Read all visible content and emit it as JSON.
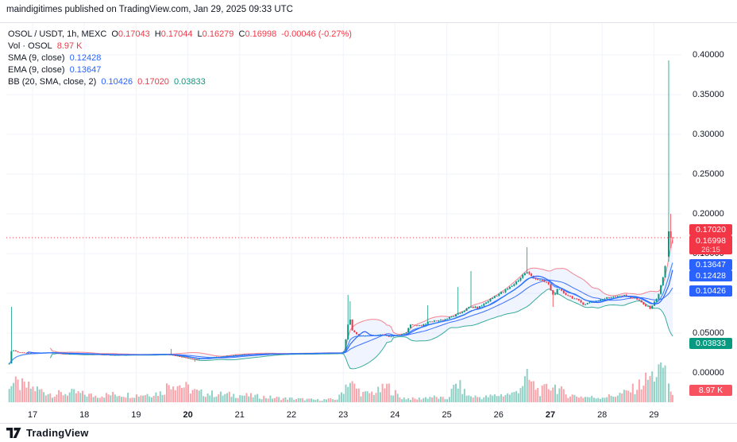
{
  "attribution": "maindigitimes published on TradingView.com, Jan 29, 2025 09:33 UTC",
  "footer": {
    "brand": "TradingView"
  },
  "legend": {
    "symbol": "OSOL / USDT, 1h, MEXC",
    "ohlc": {
      "o_label": "O",
      "o": "0.17043",
      "h_label": "H",
      "h": "0.17044",
      "l_label": "L",
      "l": "0.16279",
      "c_label": "C",
      "c": "0.16998",
      "change": "-0.00046 (-0.27%)"
    },
    "volume_row": {
      "label": "Vol · OSOL",
      "value": "8.97 K"
    },
    "sma_row": {
      "label": "SMA (9, close)",
      "value": "0.12428"
    },
    "ema_row": {
      "label": "EMA (9, close)",
      "value": "0.13647"
    },
    "bb_row": {
      "label": "BB (20, SMA, close, 2)",
      "basis": "0.10426",
      "upper": "0.17020",
      "lower": "0.03833"
    }
  },
  "colors": {
    "up": "#089981",
    "down": "#f23645",
    "vol_up": "rgba(8,153,129,0.45)",
    "vol_down": "rgba(242,54,69,0.45)",
    "sma": "#2962ff",
    "ema": "#2979ff",
    "bb_basis": "#2962ff",
    "bb_upper": "#f23645",
    "bb_lower": "#089981",
    "bb_fill": "rgba(41,98,255,0.07)",
    "grid": "#f0f3fa",
    "price_line": "#f23645",
    "badge_blue": "#2962ff",
    "badge_red": "#f23645",
    "badge_green": "#089981",
    "badge_vol": "#f7525f"
  },
  "price_scale": {
    "ticks": [
      {
        "label": "0.40000",
        "value": 0.4
      },
      {
        "label": "0.35000",
        "value": 0.35
      },
      {
        "label": "0.30000",
        "value": 0.3
      },
      {
        "label": "0.25000",
        "value": 0.25
      },
      {
        "label": "0.20000",
        "value": 0.2
      },
      {
        "label": "0.15000",
        "value": 0.15
      },
      {
        "label": "0.10000",
        "value": 0.1
      },
      {
        "label": "0.05000",
        "value": 0.05
      },
      {
        "label": "0.00000",
        "value": 0.0
      }
    ],
    "badges": {
      "bb_upper": {
        "text": "0.17020",
        "value": 0.1702,
        "color": "#f23645"
      },
      "last_price": {
        "text": "0.16998",
        "countdown": "26:15",
        "value": 0.16998,
        "color": "#f23645"
      },
      "ema": {
        "text": "0.13647",
        "value": 0.13647,
        "color": "#2962ff"
      },
      "sma": {
        "text": "0.12428",
        "value": 0.12428,
        "color": "#2962ff"
      },
      "bb_basis": {
        "text": "0.10426",
        "value": 0.10426,
        "color": "#2962ff"
      },
      "bb_lower": {
        "text": "0.03833",
        "value": 0.03833,
        "color": "#089981"
      },
      "volume": {
        "text": "8.97 K",
        "color": "#f7525f"
      }
    }
  },
  "time_scale": {
    "days": [
      {
        "label": "17",
        "day": 17,
        "bold": false
      },
      {
        "label": "18",
        "day": 18,
        "bold": false
      },
      {
        "label": "19",
        "day": 19,
        "bold": false
      },
      {
        "label": "20",
        "day": 20,
        "bold": true
      },
      {
        "label": "21",
        "day": 21,
        "bold": false
      },
      {
        "label": "22",
        "day": 22,
        "bold": false
      },
      {
        "label": "23",
        "day": 23,
        "bold": false
      },
      {
        "label": "24",
        "day": 24,
        "bold": false
      },
      {
        "label": "25",
        "day": 25,
        "bold": false
      },
      {
        "label": "26",
        "day": 26,
        "bold": false
      },
      {
        "label": "27",
        "day": 27,
        "bold": true
      },
      {
        "label": "28",
        "day": 28,
        "bold": false
      },
      {
        "label": "29",
        "day": 29,
        "bold": false
      }
    ]
  },
  "chart_data": {
    "type": "candlestick",
    "title": "OSOL / USDT, 1h, MEXC",
    "interval": "1h",
    "exchange": "MEXC",
    "last_candle": {
      "open": 0.17043,
      "high": 0.17044,
      "low": 0.16279,
      "close": 0.16998,
      "change": -0.00046,
      "change_pct": -0.27,
      "volume_k": 8.97
    },
    "indicators": {
      "sma9": 0.12428,
      "ema9": 0.13647,
      "bb": {
        "basis": 0.10426,
        "upper": 0.1702,
        "lower": 0.03833
      }
    },
    "x_range_days": [
      16.55,
      29.45
    ],
    "y_range": [
      0.0,
      0.4
    ],
    "grid": true,
    "close_path": [
      [
        16.55,
        0.012
      ],
      [
        16.6,
        0.03
      ],
      [
        16.7,
        0.026
      ],
      [
        17.0,
        0.0245
      ],
      [
        17.3,
        0.0255
      ],
      [
        17.6,
        0.024
      ],
      [
        18.0,
        0.0235
      ],
      [
        18.5,
        0.0225
      ],
      [
        19.0,
        0.023
      ],
      [
        19.6,
        0.0235
      ],
      [
        19.8,
        0.021
      ],
      [
        20.0,
        0.0185
      ],
      [
        20.15,
        0.017
      ],
      [
        20.4,
        0.019
      ],
      [
        20.8,
        0.0215
      ],
      [
        21.2,
        0.0235
      ],
      [
        21.8,
        0.024
      ],
      [
        22.4,
        0.0245
      ],
      [
        22.95,
        0.025
      ],
      [
        23.02,
        0.027
      ],
      [
        23.08,
        0.056
      ],
      [
        23.12,
        0.072
      ],
      [
        23.18,
        0.052
      ],
      [
        23.3,
        0.047
      ],
      [
        23.5,
        0.0465
      ],
      [
        23.75,
        0.048
      ],
      [
        23.9,
        0.0455
      ],
      [
        24.05,
        0.047
      ],
      [
        24.2,
        0.0495
      ],
      [
        24.28,
        0.06
      ],
      [
        24.5,
        0.0595
      ],
      [
        24.65,
        0.064
      ],
      [
        24.8,
        0.0655
      ],
      [
        25.0,
        0.068
      ],
      [
        25.15,
        0.072
      ],
      [
        25.25,
        0.075
      ],
      [
        25.45,
        0.083
      ],
      [
        25.6,
        0.0815
      ],
      [
        25.75,
        0.088
      ],
      [
        25.95,
        0.0975
      ],
      [
        26.1,
        0.102
      ],
      [
        26.25,
        0.109
      ],
      [
        26.4,
        0.118
      ],
      [
        26.53,
        0.127
      ],
      [
        26.65,
        0.121
      ],
      [
        26.8,
        0.116
      ],
      [
        26.95,
        0.113
      ],
      [
        27.05,
        0.098
      ],
      [
        27.15,
        0.105
      ],
      [
        27.3,
        0.099
      ],
      [
        27.5,
        0.092
      ],
      [
        27.65,
        0.0865
      ],
      [
        27.8,
        0.089
      ],
      [
        28.0,
        0.0925
      ],
      [
        28.2,
        0.096
      ],
      [
        28.35,
        0.098
      ],
      [
        28.5,
        0.096
      ],
      [
        28.65,
        0.0935
      ],
      [
        28.8,
        0.086
      ],
      [
        28.92,
        0.0815
      ],
      [
        29.0,
        0.0875
      ],
      [
        29.08,
        0.0975
      ],
      [
        29.15,
        0.112
      ],
      [
        29.22,
        0.135
      ],
      [
        29.25,
        0.146
      ]
    ],
    "wick_events": [
      {
        "day": 16.58,
        "high": 0.083
      },
      {
        "day": 20.15,
        "low": 0.014
      },
      {
        "day": 23.08,
        "high": 0.098
      },
      {
        "day": 23.12,
        "high": 0.09
      },
      {
        "day": 24.65,
        "high": 0.085
      },
      {
        "day": 25.2,
        "high": 0.108
      },
      {
        "day": 25.45,
        "high": 0.128
      },
      {
        "day": 26.53,
        "high": 0.158
      },
      {
        "day": 27.05,
        "low": 0.083
      },
      {
        "day": 19.67,
        "high": 0.03
      }
    ],
    "final_candles": [
      {
        "day": 29.285,
        "o": 0.146,
        "h": 0.393,
        "l": 0.14,
        "c": 0.178
      },
      {
        "day": 29.325,
        "o": 0.178,
        "h": 0.2,
        "l": 0.157,
        "c": 0.17
      },
      {
        "day": 29.36,
        "o": 0.17043,
        "h": 0.17044,
        "l": 0.16279,
        "c": 0.16998
      }
    ],
    "volume_path_k": [
      [
        16.6,
        24
      ],
      [
        17.1,
        16
      ],
      [
        17.4,
        10
      ],
      [
        17.8,
        12
      ],
      [
        18.2,
        8
      ],
      [
        18.6,
        10
      ],
      [
        19.0,
        9
      ],
      [
        19.5,
        12
      ],
      [
        19.67,
        26
      ],
      [
        19.95,
        19
      ],
      [
        20.2,
        12
      ],
      [
        20.6,
        10
      ],
      [
        21.0,
        9
      ],
      [
        21.4,
        7
      ],
      [
        21.8,
        5
      ],
      [
        22.2,
        4
      ],
      [
        22.5,
        3
      ],
      [
        22.9,
        4
      ],
      [
        23.1,
        28
      ],
      [
        23.2,
        20
      ],
      [
        23.4,
        10
      ],
      [
        23.7,
        14
      ],
      [
        23.85,
        20
      ],
      [
        24.1,
        6
      ],
      [
        24.4,
        4
      ],
      [
        24.7,
        7
      ],
      [
        25.0,
        4
      ],
      [
        25.2,
        24
      ],
      [
        25.4,
        8
      ],
      [
        25.7,
        6
      ],
      [
        26.0,
        9
      ],
      [
        26.3,
        11
      ],
      [
        26.55,
        30
      ],
      [
        26.8,
        13
      ],
      [
        27.05,
        22
      ],
      [
        27.3,
        10
      ],
      [
        27.6,
        7
      ],
      [
        27.9,
        6
      ],
      [
        28.2,
        8
      ],
      [
        28.45,
        12
      ],
      [
        28.65,
        18
      ],
      [
        28.85,
        28
      ],
      [
        29.0,
        34
      ],
      [
        29.1,
        40
      ],
      [
        29.18,
        46
      ],
      [
        29.25,
        38
      ],
      [
        29.3,
        20
      ],
      [
        29.36,
        8.97
      ]
    ],
    "price_line": 0.16998
  }
}
